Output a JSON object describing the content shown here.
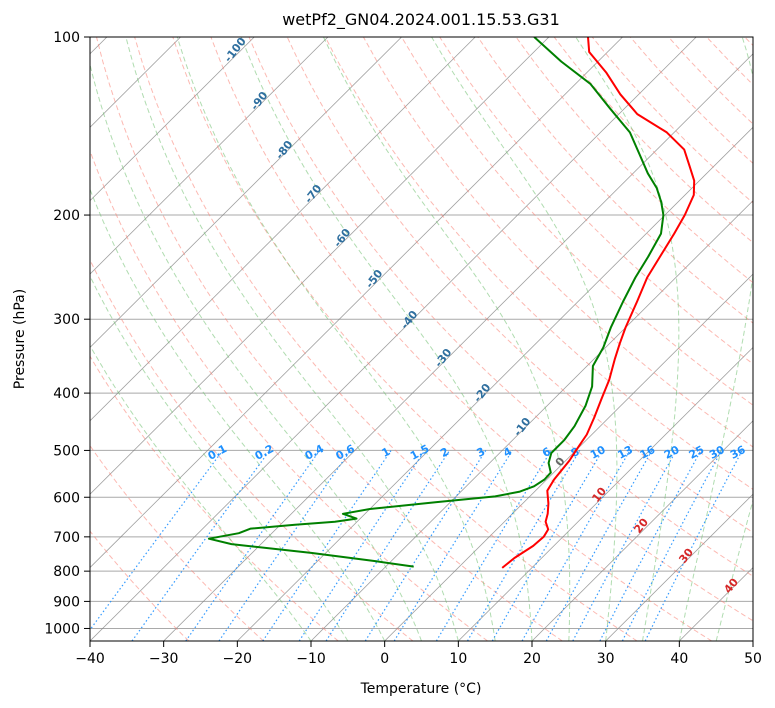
{
  "chart_data": {
    "type": "skew-t",
    "title": "wetPf2_GN04.2024.001.15.53.G31",
    "xlabel": "Temperature (°C)",
    "ylabel": "Pressure (hPa)",
    "xlim": [
      -40,
      50
    ],
    "ylim": [
      1050,
      100
    ],
    "y_scale": "log",
    "x_ticks": [
      "−40",
      "−30",
      "−20",
      "−10",
      "0",
      "10",
      "20",
      "30",
      "40",
      "50"
    ],
    "y_ticks": [
      "100",
      "200",
      "300",
      "400",
      "500",
      "600",
      "700",
      "800",
      "900",
      "1000"
    ],
    "grid": true,
    "series": [
      {
        "color": "#ff0000",
        "points": [
          [
            6,
            790
          ],
          [
            6.3,
            760
          ],
          [
            7.2,
            725
          ],
          [
            7.4,
            700
          ],
          [
            7,
            680
          ],
          [
            5.6,
            660
          ],
          [
            4.8,
            640
          ],
          [
            3.5,
            615
          ],
          [
            1.6,
            585
          ],
          [
            1,
            560
          ],
          [
            0.5,
            520
          ],
          [
            0,
            500
          ],
          [
            -0.7,
            470
          ],
          [
            -2,
            440
          ],
          [
            -3.5,
            410
          ],
          [
            -5.1,
            380
          ],
          [
            -7.2,
            350
          ],
          [
            -8.6,
            330
          ],
          [
            -10,
            310
          ],
          [
            -12,
            280
          ],
          [
            -13.9,
            255
          ],
          [
            -15,
            235
          ],
          [
            -16.2,
            215
          ],
          [
            -17.3,
            200
          ],
          [
            -18.8,
            185
          ],
          [
            -20.7,
            175
          ],
          [
            -23.4,
            165
          ],
          [
            -26.3,
            155
          ],
          [
            -31,
            145
          ],
          [
            -37.5,
            135
          ],
          [
            -42.5,
            125
          ],
          [
            -47.3,
            115
          ],
          [
            -52.5,
            106
          ],
          [
            -54.7,
            100
          ]
        ]
      },
      {
        "color": "#008000",
        "points": [
          [
            -6.2,
            786
          ],
          [
            -12,
            770
          ],
          [
            -22,
            745
          ],
          [
            -34,
            720
          ],
          [
            -37.8,
            705
          ],
          [
            -34.5,
            690
          ],
          [
            -33.5,
            678
          ],
          [
            -28,
            668
          ],
          [
            -23,
            660
          ],
          [
            -20.5,
            652
          ],
          [
            -23,
            640
          ],
          [
            -20,
            628
          ],
          [
            -12,
            612
          ],
          [
            -4.7,
            598
          ],
          [
            -2,
            587
          ],
          [
            -0.8,
            575
          ],
          [
            -0.3,
            560
          ],
          [
            -0.4,
            545
          ],
          [
            -2,
            525
          ],
          [
            -3,
            505
          ],
          [
            -3,
            480
          ],
          [
            -3.5,
            455
          ],
          [
            -4.8,
            420
          ],
          [
            -6.5,
            390
          ],
          [
            -9.2,
            360
          ],
          [
            -10.3,
            335
          ],
          [
            -12,
            310
          ],
          [
            -13.9,
            280
          ],
          [
            -15.5,
            255
          ],
          [
            -16.6,
            235
          ],
          [
            -18,
            215
          ],
          [
            -20.2,
            200
          ],
          [
            -22.3,
            190
          ],
          [
            -24.8,
            180
          ],
          [
            -28,
            170
          ],
          [
            -32,
            157
          ],
          [
            -36,
            145
          ],
          [
            -42,
            132
          ],
          [
            -48,
            120
          ],
          [
            -55,
            110
          ],
          [
            -62,
            100
          ]
        ]
      }
    ],
    "dry_adiabat_labels": [
      "-100",
      "-90",
      "-80",
      "-70",
      "-60",
      "-50",
      "-40",
      "-30",
      "-20",
      "-10",
      "0",
      "10",
      "20",
      "30",
      "40"
    ],
    "mixing_ratio_labels": [
      "0.1",
      "0.2",
      "0.4",
      "0.6",
      "1",
      "1.5",
      "2",
      "3",
      "4",
      "6",
      "8",
      "10",
      "13",
      "16",
      "20",
      "25",
      "30",
      "36"
    ]
  },
  "colors": {
    "temperature": "#ff0000",
    "dewpoint": "#008000",
    "dry_adiabat": "#fa8072",
    "moist_adiabat": "#6fbf6f",
    "mixing_ratio": "#1e90ff",
    "isotherm": "#808080",
    "isobar": "#a9a9a9",
    "dry_adiabat_label": "#2f6f9f"
  }
}
